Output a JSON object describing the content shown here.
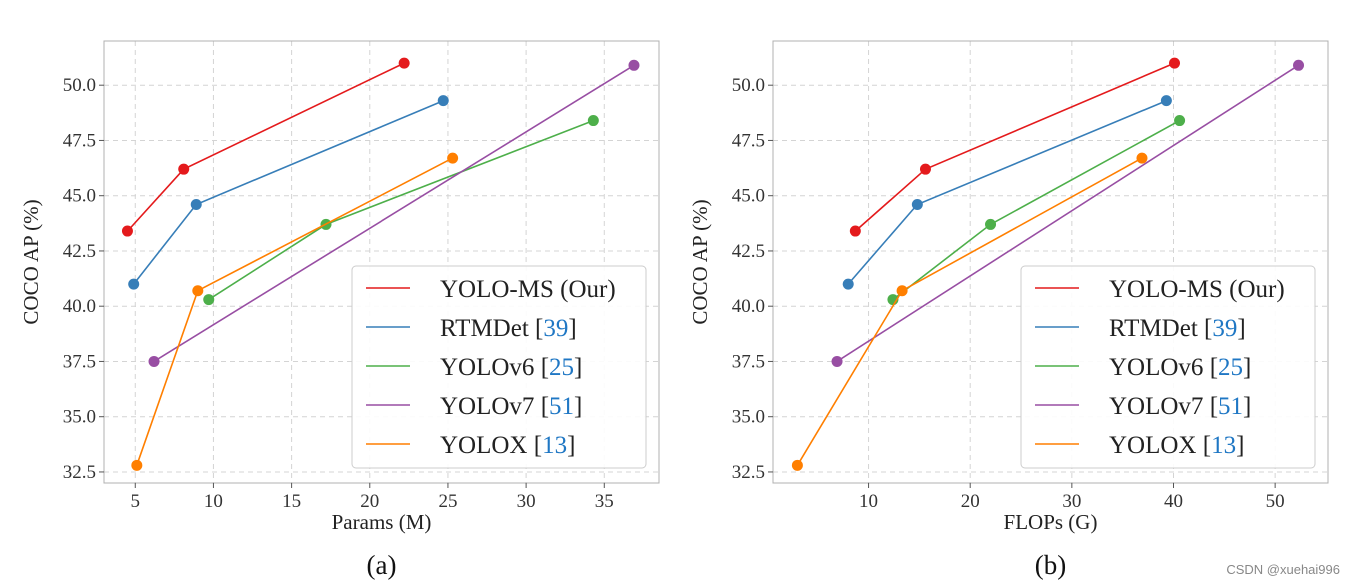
{
  "chart_data": [
    {
      "type": "line",
      "panel_label": "(a)",
      "xlabel": "Params (M)",
      "ylabel": "COCO AP (%)",
      "xlim": [
        3,
        38.5
      ],
      "ylim": [
        32,
        52
      ],
      "xticks": [
        5,
        10,
        15,
        20,
        25,
        30,
        35
      ],
      "yticks": [
        32.5,
        35.0,
        37.5,
        40.0,
        42.5,
        45.0,
        47.5,
        50.0
      ],
      "grid": true,
      "legend_position": "bottom-right",
      "series": [
        {
          "name": "YOLO-MS (Our)",
          "ref": "",
          "color": "#e41a1c",
          "x": [
            4.5,
            8.1,
            22.2
          ],
          "y": [
            43.4,
            46.2,
            51.0
          ]
        },
        {
          "name": "RTMDet",
          "ref": "39",
          "color": "#377eb8",
          "x": [
            4.9,
            8.9,
            24.7
          ],
          "y": [
            41.0,
            44.6,
            49.3
          ]
        },
        {
          "name": "YOLOv6",
          "ref": "25",
          "color": "#4daf4a",
          "x": [
            9.7,
            17.2,
            34.3
          ],
          "y": [
            40.3,
            43.7,
            48.4
          ]
        },
        {
          "name": "YOLOv7",
          "ref": "51",
          "color": "#984ea3",
          "x": [
            6.2,
            36.9
          ],
          "y": [
            37.5,
            50.9
          ]
        },
        {
          "name": "YOLOX",
          "ref": "13",
          "color": "#ff7f00",
          "x": [
            5.1,
            9.0,
            25.3
          ],
          "y": [
            32.8,
            40.7,
            46.7
          ]
        }
      ]
    },
    {
      "type": "line",
      "panel_label": "(b)",
      "xlabel": "FLOPs (G)",
      "ylabel": "COCO AP (%)",
      "xlim": [
        0.6,
        55.2
      ],
      "ylim": [
        32,
        52
      ],
      "xticks": [
        10,
        20,
        30,
        40,
        50
      ],
      "yticks": [
        32.5,
        35.0,
        37.5,
        40.0,
        42.5,
        45.0,
        47.5,
        50.0
      ],
      "grid": true,
      "legend_position": "bottom-right",
      "series": [
        {
          "name": "YOLO-MS (Our)",
          "ref": "",
          "color": "#e41a1c",
          "x": [
            8.7,
            15.6,
            40.1
          ],
          "y": [
            43.4,
            46.2,
            51.0
          ]
        },
        {
          "name": "RTMDet",
          "ref": "39",
          "color": "#377eb8",
          "x": [
            8.0,
            14.8,
            39.3
          ],
          "y": [
            41.0,
            44.6,
            49.3
          ]
        },
        {
          "name": "YOLOv6",
          "ref": "25",
          "color": "#4daf4a",
          "x": [
            12.4,
            22.0,
            40.6
          ],
          "y": [
            40.3,
            43.7,
            48.4
          ]
        },
        {
          "name": "YOLOv7",
          "ref": "51",
          "color": "#984ea3",
          "x": [
            6.9,
            52.3
          ],
          "y": [
            37.5,
            50.9
          ]
        },
        {
          "name": "YOLOX",
          "ref": "13",
          "color": "#ff7f00",
          "x": [
            3.0,
            13.3,
            36.9
          ],
          "y": [
            32.8,
            40.7,
            46.7
          ]
        }
      ]
    }
  ],
  "ref_color": "#1f77c4",
  "watermark": "CSDN @xuehai996"
}
